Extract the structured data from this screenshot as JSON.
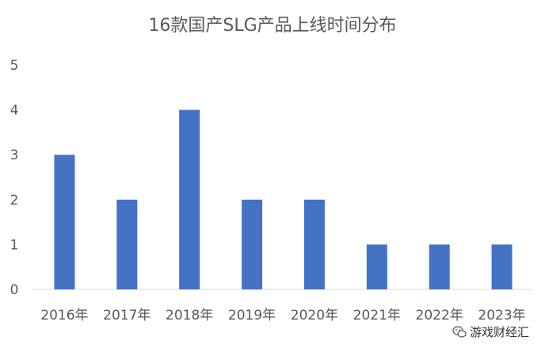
{
  "chart_data": {
    "type": "bar",
    "title": "16款国产SLG产品上线时间分布",
    "categories": [
      "2016年",
      "2017年",
      "2018年",
      "2019年",
      "2020年",
      "2021年",
      "2022年",
      "2023年"
    ],
    "values": [
      3,
      2,
      4,
      2,
      2,
      1,
      1,
      1
    ],
    "ylim": [
      0,
      5
    ],
    "yticks": [
      "0",
      "1",
      "2",
      "3",
      "4",
      "5"
    ],
    "grid": false,
    "bar_color": "#4472C4"
  },
  "watermark": {
    "text": "游戏财经汇",
    "icon": "wechat-icon"
  }
}
